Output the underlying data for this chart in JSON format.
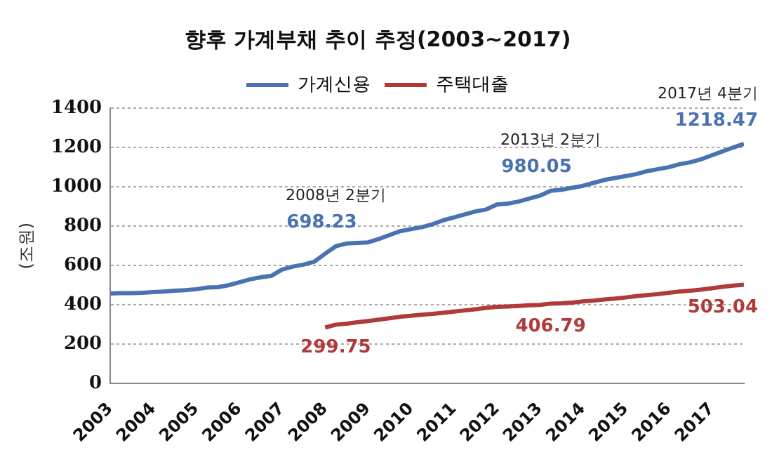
{
  "chart_data": {
    "type": "line",
    "title": "향후 가계부채 추이 추정(2003~2017)",
    "ylabel": "(조원)",
    "x": [
      2003,
      2003.25,
      2003.5,
      2003.75,
      2004,
      2004.25,
      2004.5,
      2004.75,
      2005,
      2005.25,
      2005.5,
      2005.75,
      2006,
      2006.25,
      2006.5,
      2006.75,
      2007,
      2007.25,
      2007.5,
      2007.75,
      2008,
      2008.25,
      2008.5,
      2008.75,
      2009,
      2009.25,
      2009.5,
      2009.75,
      2010,
      2010.25,
      2010.5,
      2010.75,
      2011,
      2011.25,
      2011.5,
      2011.75,
      2012,
      2012.25,
      2012.5,
      2012.75,
      2013,
      2013.25,
      2013.5,
      2013.75,
      2014,
      2014.25,
      2014.5,
      2014.75,
      2015,
      2015.25,
      2015.5,
      2015.75,
      2016,
      2016.25,
      2016.5,
      2016.75,
      2017,
      2017.25,
      2017.5,
      2017.75
    ],
    "series": [
      {
        "name": "가계신용",
        "color": "#4a72b0",
        "values": [
          458,
          460,
          460,
          462,
          465,
          468,
          472,
          475,
          480,
          488,
          490,
          500,
          515,
          530,
          540,
          548,
          580,
          595,
          605,
          620,
          660,
          698.23,
          712,
          715,
          718,
          735,
          755,
          775,
          785,
          795,
          810,
          830,
          845,
          860,
          875,
          885,
          910,
          915,
          925,
          940,
          955,
          980.05,
          985,
          995,
          1005,
          1020,
          1035,
          1045,
          1055,
          1065,
          1080,
          1090,
          1100,
          1115,
          1125,
          1140,
          1160,
          1180,
          1200,
          1218.47
        ],
        "value_labels": [
          null,
          null,
          null,
          null,
          null,
          null,
          null,
          null,
          null,
          null,
          null,
          null,
          null,
          null,
          null,
          null,
          null,
          null,
          null,
          null,
          null,
          "698.23",
          null,
          null,
          null,
          null,
          null,
          null,
          null,
          null,
          null,
          null,
          null,
          null,
          null,
          null,
          null,
          null,
          null,
          null,
          null,
          "980.05",
          null,
          null,
          null,
          null,
          null,
          null,
          null,
          null,
          null,
          null,
          null,
          null,
          null,
          null,
          null,
          null,
          null,
          "1218.47"
        ]
      },
      {
        "name": "주택대출",
        "color": "#b03a3a",
        "values": [
          null,
          null,
          null,
          null,
          null,
          null,
          null,
          null,
          null,
          null,
          null,
          null,
          null,
          null,
          null,
          null,
          null,
          null,
          null,
          null,
          285,
          299.75,
          305,
          312,
          318,
          325,
          332,
          340,
          345,
          350,
          355,
          360,
          366,
          372,
          378,
          385,
          390,
          392,
          395,
          398,
          400,
          406.79,
          408,
          412,
          418,
          422,
          428,
          432,
          438,
          445,
          450,
          455,
          462,
          468,
          472,
          478,
          485,
          492,
          498,
          503.04
        ],
        "value_labels": [
          null,
          null,
          null,
          null,
          null,
          null,
          null,
          null,
          null,
          null,
          null,
          null,
          null,
          null,
          null,
          null,
          null,
          null,
          null,
          null,
          null,
          "299.75",
          null,
          null,
          null,
          null,
          null,
          null,
          null,
          null,
          null,
          null,
          null,
          null,
          null,
          null,
          null,
          null,
          null,
          null,
          null,
          "406.79",
          null,
          null,
          null,
          null,
          null,
          null,
          null,
          null,
          null,
          null,
          null,
          null,
          null,
          null,
          null,
          null,
          null,
          "503.04"
        ]
      }
    ],
    "annotations": [
      {
        "text": "2008년 2분기",
        "x": 2008.25,
        "y": 698.23
      },
      {
        "text": "2013년 2분기",
        "x": 2013.25,
        "y": 980.05
      },
      {
        "text": "2017년 4분기",
        "x": 2017.75,
        "y": 1218.47
      }
    ],
    "xlim": [
      2003,
      2017.75
    ],
    "xticks": [
      2003,
      2004,
      2005,
      2006,
      2007,
      2008,
      2009,
      2010,
      2011,
      2012,
      2013,
      2014,
      2015,
      2016,
      2017
    ],
    "ylim": [
      0,
      1400
    ],
    "yticks": [
      0,
      200,
      400,
      600,
      800,
      1000,
      1200,
      1400
    ],
    "grid": "y",
    "legend": "top",
    "marker": "none",
    "line_style": "solid"
  }
}
